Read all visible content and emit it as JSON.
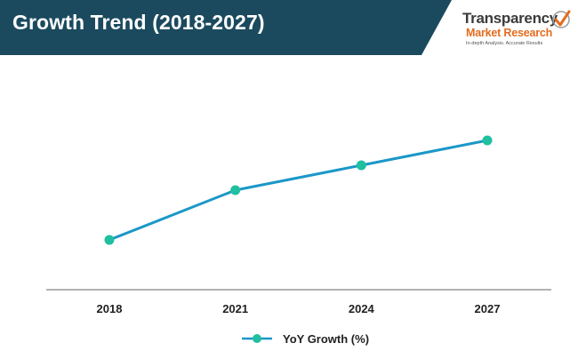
{
  "header": {
    "title": "Growth Trend (2018-2027)",
    "band_color": "#1b4a5e"
  },
  "logo": {
    "line1": "Transparency",
    "line2": "Market Research",
    "tagline": "In-depth Analysis. Accurate Results",
    "accent_color": "#e36c1e",
    "icon": "checkmark-icon"
  },
  "chart_data": {
    "type": "line",
    "title": "Growth Trend (2018-2027)",
    "xlabel": "",
    "ylabel": "",
    "categories": [
      "2018",
      "2021",
      "2024",
      "2027"
    ],
    "series": [
      {
        "name": "YoY Growth (%)",
        "values": [
          2.0,
          4.0,
          5.0,
          6.0
        ],
        "line_color": "#1b97c8",
        "marker_color": "#1fbf9f"
      }
    ],
    "ylim": [
      0,
      8
    ],
    "y_axis_visible": false,
    "grid": false,
    "legend": "bottom-center"
  }
}
